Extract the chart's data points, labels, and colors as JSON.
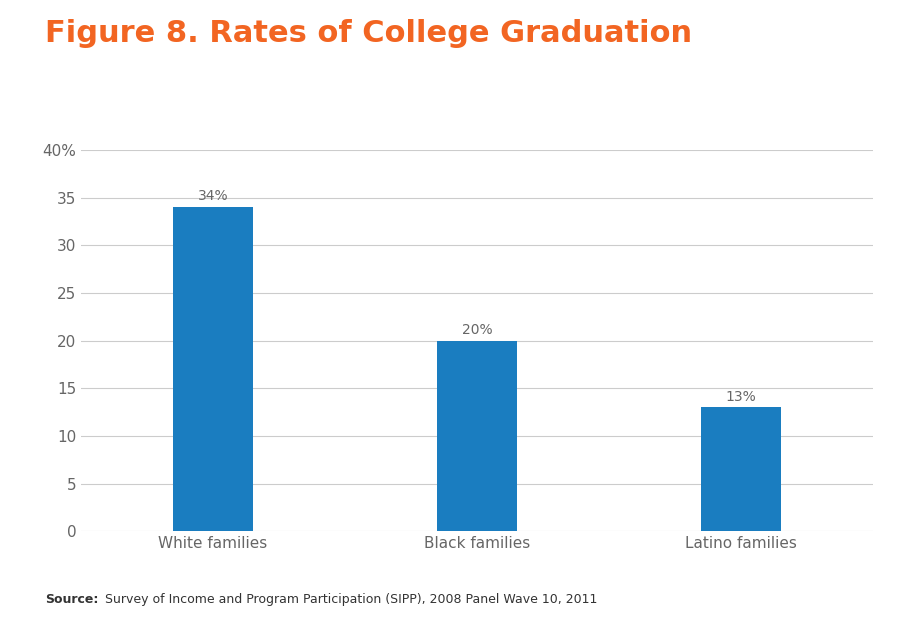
{
  "title": "Figure 8. Rates of College Graduation",
  "title_color": "#F26522",
  "categories": [
    "White families",
    "Black families",
    "Latino families"
  ],
  "values": [
    34,
    20,
    13
  ],
  "bar_labels": [
    "34%",
    "20%",
    "13%"
  ],
  "bar_color": "#1A7DC0",
  "ylim": [
    0,
    40
  ],
  "yticks": [
    0,
    5,
    10,
    15,
    20,
    25,
    30,
    35,
    40
  ],
  "ytick_labels": [
    "0",
    "5",
    "10",
    "15",
    "20",
    "25",
    "30",
    "35",
    "40%"
  ],
  "source_bold": "Source:",
  "source_text": " Survey of Income and Program Participation (SIPP), 2008 Panel Wave 10, 2011",
  "background_color": "#FFFFFF",
  "grid_color": "#CCCCCC",
  "tick_color": "#666666",
  "label_fontsize": 11,
  "bar_label_fontsize": 10,
  "title_fontsize": 22,
  "source_fontsize": 9,
  "bar_width": 0.3
}
